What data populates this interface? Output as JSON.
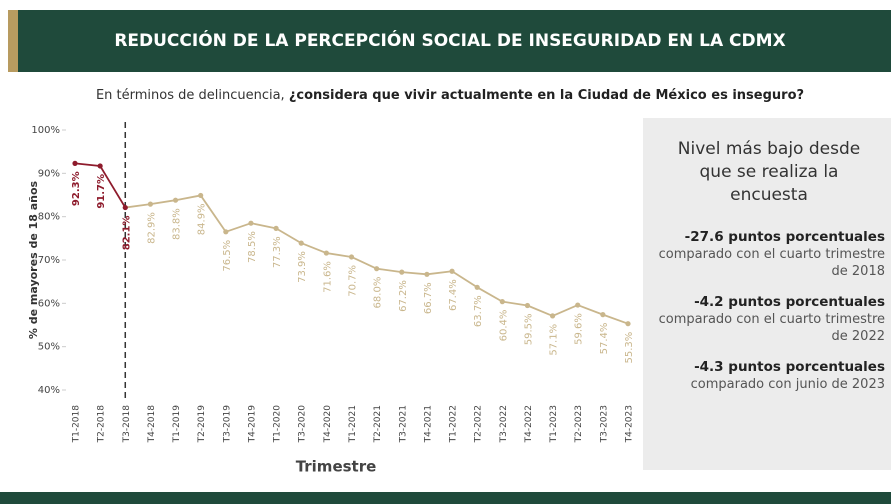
{
  "header": {
    "title": "REDUCCIÓN DE LA PERCEPCIÓN SOCIAL DE INSEGURIDAD EN LA CDMX"
  },
  "subtitle": {
    "plain": "En términos de delincuencia, ",
    "bold": "¿considera que vivir actualmente en la Ciudad de México es inseguro?"
  },
  "chart_data": {
    "type": "line",
    "ylabel": "% de mayores de 18 años",
    "xlabel": "Trimestre",
    "categories": [
      "T1-2018",
      "T2-2018",
      "T3-2018",
      "T4-2018",
      "T1-2019",
      "T2-2019",
      "T3-2019",
      "T4-2019",
      "T1-2020",
      "T3-2020",
      "T4-2020",
      "T1-2021",
      "T2-2021",
      "T3-2021",
      "T4-2021",
      "T1-2022",
      "T2-2022",
      "T3-2022",
      "T4-2022",
      "T1-2023",
      "T2-2023",
      "T3-2023",
      "T4-2023"
    ],
    "series": [
      {
        "values": [
          92.3,
          91.7,
          82.1,
          82.9,
          83.8,
          84.9,
          76.5,
          78.5,
          77.3,
          73.9,
          71.6,
          70.7,
          68.0,
          67.2,
          66.7,
          67.4,
          63.7,
          60.4,
          59.5,
          57.1,
          59.6,
          57.4,
          55.3
        ],
        "value_labels": [
          "92.3%",
          "91.7%",
          "82.1%",
          "82.9%",
          "83.8%",
          "84.9%",
          "76.5%",
          "78.5%",
          "77.3%",
          "73.9%",
          "71.6%",
          "70.7%",
          "68.0%",
          "67.2%",
          "66.7%",
          "67.4%",
          "63.7%",
          "60.4%",
          "59.5%",
          "57.1%",
          "59.6%",
          "57.4%",
          "55.3%"
        ],
        "colors": [
          "#8e1b2c",
          "#8e1b2c",
          "#8e1b2c",
          "#c9b68c",
          "#c9b68c",
          "#c9b68c",
          "#c9b68c",
          "#c9b68c",
          "#c9b68c",
          "#c9b68c",
          "#c9b68c",
          "#c9b68c",
          "#c9b68c",
          "#c9b68c",
          "#c9b68c",
          "#c9b68c",
          "#c9b68c",
          "#c9b68c",
          "#c9b68c",
          "#c9b68c",
          "#c9b68c",
          "#c9b68c",
          "#c9b68c"
        ]
      }
    ],
    "ylim": [
      40,
      100
    ],
    "yticks": [
      {
        "value": 40,
        "label": "40%"
      },
      {
        "value": 50,
        "label": "50%"
      },
      {
        "value": 60,
        "label": "60%"
      },
      {
        "value": 70,
        "label": "70%"
      },
      {
        "value": 80,
        "label": "80%"
      },
      {
        "value": 90,
        "label": "90%"
      },
      {
        "value": 100,
        "label": "100%"
      }
    ]
  },
  "panel": {
    "title": "Nivel más bajo desde que se realiza la encuesta",
    "items": [
      {
        "bold": "-27.6 puntos porcentuales",
        "text": "comparado con el cuarto trimestre de 2018"
      },
      {
        "bold": "-4.2 puntos porcentuales",
        "text": "comparado con el cuarto trimestre de 2022"
      },
      {
        "bold": "-4.3 puntos porcentuales",
        "text": "comparado con junio de 2023"
      }
    ]
  }
}
